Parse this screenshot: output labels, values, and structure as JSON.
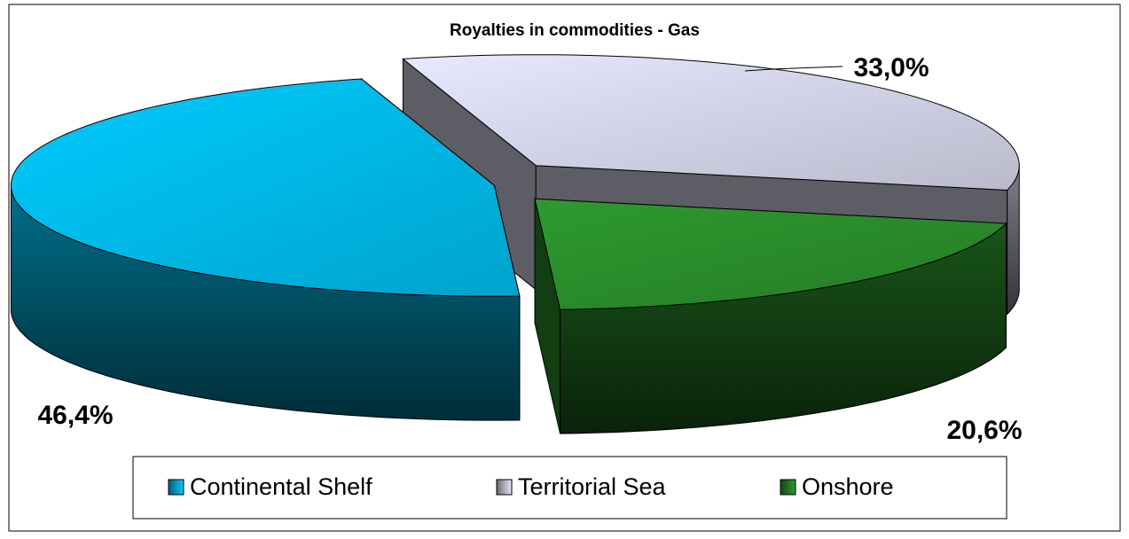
{
  "chart_data": {
    "type": "pie",
    "title": "Royalties in commodities - Gas",
    "categories": [
      "Continental Shelf",
      "Territorial Sea",
      "Onshore"
    ],
    "values": [
      46.4,
      33.0,
      20.6
    ],
    "value_labels": [
      "46,4%",
      "33,0%",
      "20,6%"
    ],
    "colors": [
      "#00ccff",
      "#e8e8ff",
      "#2e9a2e"
    ]
  }
}
